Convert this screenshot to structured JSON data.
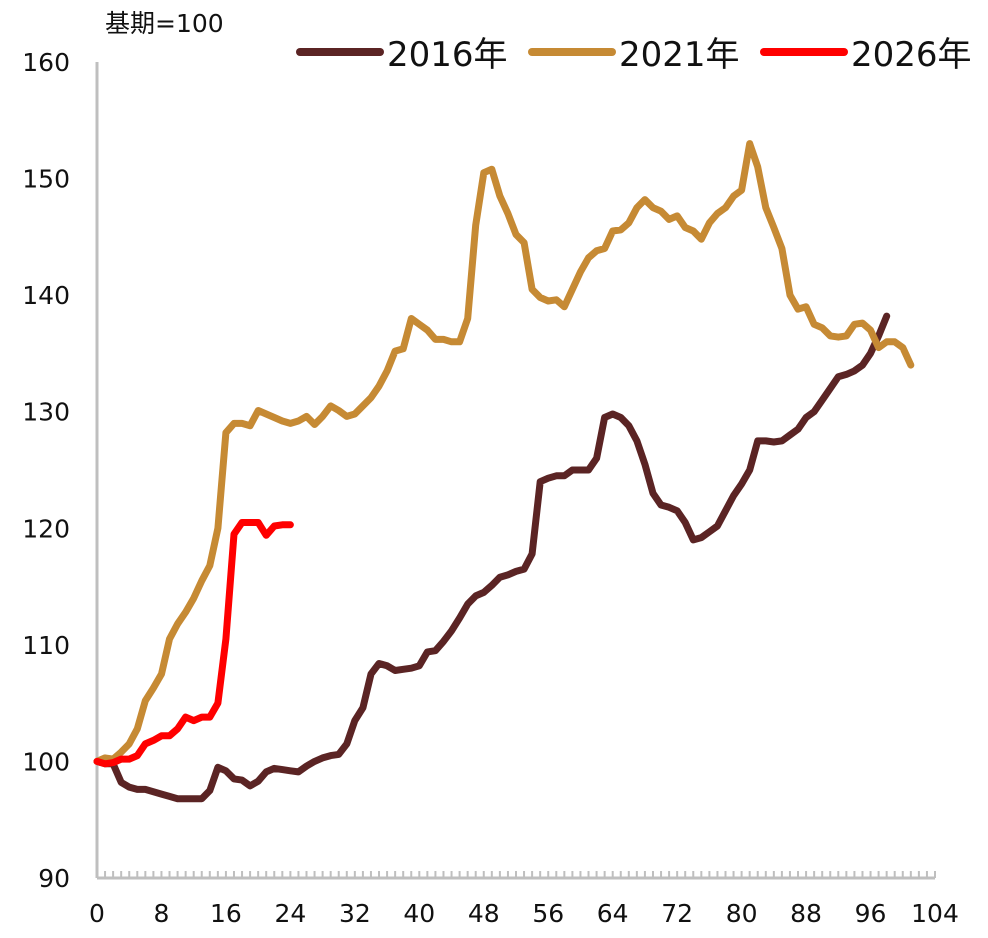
{
  "chart_data": {
    "type": "line",
    "unit_label": "基期=100",
    "title": "",
    "xlabel": "",
    "ylabel": "",
    "xlim": [
      0,
      104
    ],
    "ylim": [
      90,
      160
    ],
    "x_ticks": [
      0,
      8,
      16,
      24,
      32,
      40,
      48,
      56,
      64,
      72,
      80,
      88,
      96,
      104
    ],
    "y_ticks": [
      90,
      100,
      110,
      120,
      130,
      140,
      150,
      160
    ],
    "grid": false,
    "legend_position": "top-right",
    "series": [
      {
        "name": "2016年",
        "color": "#5b2424",
        "points": [
          [
            0,
            100
          ],
          [
            1,
            99.8
          ],
          [
            2,
            99.8
          ],
          [
            3,
            98.2
          ],
          [
            4,
            97.8
          ],
          [
            5,
            97.6
          ],
          [
            6,
            97.6
          ],
          [
            7,
            97.4
          ],
          [
            8,
            97.2
          ],
          [
            9,
            97
          ],
          [
            10,
            96.8
          ],
          [
            11,
            96.8
          ],
          [
            12,
            96.8
          ],
          [
            13,
            96.8
          ],
          [
            14,
            97.5
          ],
          [
            15,
            99.5
          ],
          [
            16,
            99.2
          ],
          [
            17,
            98.5
          ],
          [
            18,
            98.4
          ],
          [
            19,
            97.9
          ],
          [
            20,
            98.3
          ],
          [
            21,
            99.1
          ],
          [
            22,
            99.4
          ],
          [
            23,
            99.3
          ],
          [
            24,
            99.2
          ],
          [
            25,
            99.1
          ],
          [
            26,
            99.6
          ],
          [
            27,
            100
          ],
          [
            28,
            100.3
          ],
          [
            29,
            100.5
          ],
          [
            30,
            100.6
          ],
          [
            31,
            101.5
          ],
          [
            32,
            103.5
          ],
          [
            33,
            104.6
          ],
          [
            34,
            107.5
          ],
          [
            35,
            108.4
          ],
          [
            36,
            108.2
          ],
          [
            37,
            107.8
          ],
          [
            38,
            107.9
          ],
          [
            39,
            108
          ],
          [
            40,
            108.2
          ],
          [
            41,
            109.4
          ],
          [
            42,
            109.5
          ],
          [
            43,
            110.3
          ],
          [
            44,
            111.2
          ],
          [
            45,
            112.3
          ],
          [
            46,
            113.5
          ],
          [
            47,
            114.2
          ],
          [
            48,
            114.5
          ],
          [
            49,
            115.1
          ],
          [
            50,
            115.8
          ],
          [
            51,
            116
          ],
          [
            52,
            116.3
          ],
          [
            53,
            116.5
          ],
          [
            54,
            117.8
          ],
          [
            55,
            124
          ],
          [
            56,
            124.3
          ],
          [
            57,
            124.5
          ],
          [
            58,
            124.5
          ],
          [
            59,
            125
          ],
          [
            60,
            125
          ],
          [
            61,
            125
          ],
          [
            62,
            126
          ],
          [
            63,
            129.5
          ],
          [
            64,
            129.8
          ],
          [
            65,
            129.5
          ],
          [
            66,
            128.8
          ],
          [
            67,
            127.5
          ],
          [
            68,
            125.5
          ],
          [
            69,
            123
          ],
          [
            70,
            122
          ],
          [
            71,
            121.8
          ],
          [
            72,
            121.5
          ],
          [
            73,
            120.5
          ],
          [
            74,
            119
          ],
          [
            75,
            119.2
          ],
          [
            76,
            119.7
          ],
          [
            77,
            120.2
          ],
          [
            78,
            121.5
          ],
          [
            79,
            122.8
          ],
          [
            80,
            123.8
          ],
          [
            81,
            125
          ],
          [
            82,
            127.5
          ],
          [
            83,
            127.5
          ],
          [
            84,
            127.4
          ],
          [
            85,
            127.5
          ],
          [
            86,
            128
          ],
          [
            87,
            128.5
          ],
          [
            88,
            129.5
          ],
          [
            89,
            130
          ],
          [
            90,
            131
          ],
          [
            91,
            132
          ],
          [
            92,
            133
          ],
          [
            93,
            133.2
          ],
          [
            94,
            133.5
          ],
          [
            95,
            134
          ],
          [
            96,
            135
          ],
          [
            97,
            136.5
          ],
          [
            98,
            138.2
          ]
        ]
      },
      {
        "name": "2021年",
        "color": "#c68a34",
        "points": [
          [
            0,
            100
          ],
          [
            1,
            100.3
          ],
          [
            2,
            100.2
          ],
          [
            3,
            100.8
          ],
          [
            4,
            101.5
          ],
          [
            5,
            102.8
          ],
          [
            6,
            105.2
          ],
          [
            7,
            106.3
          ],
          [
            8,
            107.5
          ],
          [
            9,
            110.5
          ],
          [
            10,
            111.8
          ],
          [
            11,
            112.8
          ],
          [
            12,
            114
          ],
          [
            13,
            115.5
          ],
          [
            14,
            116.8
          ],
          [
            15,
            120
          ],
          [
            16,
            128.2
          ],
          [
            17,
            129
          ],
          [
            18,
            129
          ],
          [
            19,
            128.8
          ],
          [
            20,
            130.1
          ],
          [
            21,
            129.8
          ],
          [
            22,
            129.5
          ],
          [
            23,
            129.2
          ],
          [
            24,
            129
          ],
          [
            25,
            129.2
          ],
          [
            26,
            129.6
          ],
          [
            27,
            128.9
          ],
          [
            28,
            129.6
          ],
          [
            29,
            130.5
          ],
          [
            30,
            130.1
          ],
          [
            31,
            129.6
          ],
          [
            32,
            129.8
          ],
          [
            33,
            130.5
          ],
          [
            34,
            131.2
          ],
          [
            35,
            132.2
          ],
          [
            36,
            133.5
          ],
          [
            37,
            135.2
          ],
          [
            38,
            135.4
          ],
          [
            39,
            138
          ],
          [
            40,
            137.5
          ],
          [
            41,
            137
          ],
          [
            42,
            136.2
          ],
          [
            43,
            136.2
          ],
          [
            44,
            136
          ],
          [
            45,
            136
          ],
          [
            46,
            138
          ],
          [
            47,
            146
          ],
          [
            48,
            150.5
          ],
          [
            49,
            150.8
          ],
          [
            50,
            148.5
          ],
          [
            51,
            147
          ],
          [
            52,
            145.2
          ],
          [
            53,
            144.5
          ],
          [
            54,
            140.5
          ],
          [
            55,
            139.8
          ],
          [
            56,
            139.5
          ],
          [
            57,
            139.6
          ],
          [
            58,
            139
          ],
          [
            59,
            140.5
          ],
          [
            60,
            142
          ],
          [
            61,
            143.2
          ],
          [
            62,
            143.8
          ],
          [
            63,
            144
          ],
          [
            64,
            145.5
          ],
          [
            65,
            145.6
          ],
          [
            66,
            146.2
          ],
          [
            67,
            147.5
          ],
          [
            68,
            148.2
          ],
          [
            69,
            147.5
          ],
          [
            70,
            147.2
          ],
          [
            71,
            146.5
          ],
          [
            72,
            146.8
          ],
          [
            73,
            145.8
          ],
          [
            74,
            145.5
          ],
          [
            75,
            144.8
          ],
          [
            76,
            146.2
          ],
          [
            77,
            147
          ],
          [
            78,
            147.5
          ],
          [
            79,
            148.5
          ],
          [
            80,
            149
          ],
          [
            81,
            153
          ],
          [
            82,
            151
          ],
          [
            83,
            147.5
          ],
          [
            84,
            145.8
          ],
          [
            85,
            144
          ],
          [
            86,
            140
          ],
          [
            87,
            138.8
          ],
          [
            88,
            139
          ],
          [
            89,
            137.5
          ],
          [
            90,
            137.2
          ],
          [
            91,
            136.5
          ],
          [
            92,
            136.4
          ],
          [
            93,
            136.5
          ],
          [
            94,
            137.5
          ],
          [
            95,
            137.6
          ],
          [
            96,
            137
          ],
          [
            97,
            135.5
          ],
          [
            98,
            136
          ],
          [
            99,
            136
          ],
          [
            100,
            135.5
          ],
          [
            101,
            134
          ]
        ]
      },
      {
        "name": "2026年",
        "color": "#ff0000",
        "points": [
          [
            0,
            100
          ],
          [
            1,
            99.8
          ],
          [
            2,
            99.9
          ],
          [
            3,
            100.2
          ],
          [
            4,
            100.2
          ],
          [
            5,
            100.5
          ],
          [
            6,
            101.5
          ],
          [
            7,
            101.8
          ],
          [
            8,
            102.2
          ],
          [
            9,
            102.2
          ],
          [
            10,
            102.8
          ],
          [
            11,
            103.8
          ],
          [
            12,
            103.5
          ],
          [
            13,
            103.8
          ],
          [
            14,
            103.8
          ],
          [
            15,
            105
          ],
          [
            16,
            110.5
          ],
          [
            17,
            119.5
          ],
          [
            18,
            120.5
          ],
          [
            19,
            120.5
          ],
          [
            20,
            120.5
          ],
          [
            21,
            119.4
          ],
          [
            22,
            120.2
          ],
          [
            23,
            120.3
          ],
          [
            24,
            120.3
          ]
        ]
      }
    ]
  }
}
